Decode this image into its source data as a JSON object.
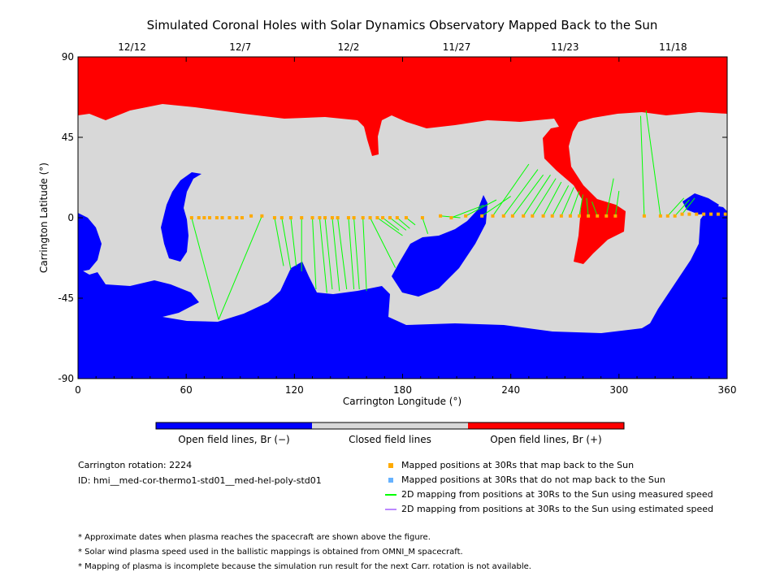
{
  "chart_data": {
    "type": "map",
    "title": "Simulated Coronal Holes with Solar Dynamics Observatory Mapped Back to the Sun",
    "xlabel": "Carrington Longitude (°)",
    "ylabel": "Carrington Latitude (°)",
    "xlim": [
      0,
      360
    ],
    "ylim": [
      -90,
      90
    ],
    "xticks": [
      0,
      60,
      120,
      180,
      240,
      300,
      360
    ],
    "yticks": [
      -90,
      -45,
      0,
      45,
      90
    ],
    "top_date_ticks": [
      {
        "label": "12/12",
        "lon": 30
      },
      {
        "label": "12/7",
        "lon": 90
      },
      {
        "label": "12/2",
        "lon": 150
      },
      {
        "label": "11/27",
        "lon": 210
      },
      {
        "label": "11/23",
        "lon": 270
      },
      {
        "label": "11/18",
        "lon": 330
      }
    ],
    "colorbar": [
      {
        "label": "Open field lines, Br (−)",
        "color": "#0000ff"
      },
      {
        "label": "Closed field lines",
        "color": "#d8d8d8"
      },
      {
        "label": "Open field lines, Br (+)",
        "color": "#ff0000"
      }
    ],
    "mapped_points": [
      {
        "lon": 63,
        "lat": 0,
        "src_lon": 78,
        "src_lat": -57
      },
      {
        "lon": 67,
        "lat": 0
      },
      {
        "lon": 70,
        "lat": 0
      },
      {
        "lon": 73,
        "lat": 0
      },
      {
        "lon": 77,
        "lat": 0
      },
      {
        "lon": 80,
        "lat": 0
      },
      {
        "lon": 84,
        "lat": 0
      },
      {
        "lon": 88,
        "lat": 0
      },
      {
        "lon": 91,
        "lat": 0
      },
      {
        "lon": 96,
        "lat": 1
      },
      {
        "lon": 102,
        "lat": 1,
        "src_lon": 78,
        "src_lat": -57
      },
      {
        "lon": 109,
        "lat": 0,
        "src_lon": 114,
        "src_lat": -27
      },
      {
        "lon": 113,
        "lat": 0,
        "src_lon": 118,
        "src_lat": -29
      },
      {
        "lon": 118,
        "lat": 0,
        "src_lon": 121,
        "src_lat": -27
      },
      {
        "lon": 124,
        "lat": 0,
        "src_lon": 124,
        "src_lat": -30
      },
      {
        "lon": 130,
        "lat": 0,
        "src_lon": 132,
        "src_lat": -40
      },
      {
        "lon": 134,
        "lat": 0,
        "src_lon": 138,
        "src_lat": -42
      },
      {
        "lon": 137,
        "lat": 0,
        "src_lon": 141,
        "src_lat": -40
      },
      {
        "lon": 141,
        "lat": 0,
        "src_lon": 145,
        "src_lat": -41
      },
      {
        "lon": 144,
        "lat": 0,
        "src_lon": 149,
        "src_lat": -40
      },
      {
        "lon": 150,
        "lat": 0,
        "src_lon": 153,
        "src_lat": -40
      },
      {
        "lon": 153,
        "lat": 0,
        "src_lon": 156,
        "src_lat": -40
      },
      {
        "lon": 158,
        "lat": 0,
        "src_lon": 160,
        "src_lat": -41
      },
      {
        "lon": 162,
        "lat": 0,
        "src_lon": 176,
        "src_lat": -28
      },
      {
        "lon": 166,
        "lat": 0,
        "src_lon": 180,
        "src_lat": -10
      },
      {
        "lon": 169,
        "lat": 0,
        "src_lon": 178,
        "src_lat": -7
      },
      {
        "lon": 173,
        "lat": 0,
        "src_lon": 182,
        "src_lat": -7
      },
      {
        "lon": 177,
        "lat": 0,
        "src_lon": 184,
        "src_lat": -6
      },
      {
        "lon": 182,
        "lat": 0,
        "src_lon": 187,
        "src_lat": -4
      },
      {
        "lon": 191,
        "lat": 0,
        "src_lon": 194,
        "src_lat": -9
      },
      {
        "lon": 201,
        "lat": 1,
        "src_lon": 212,
        "src_lat": 0
      },
      {
        "lon": 207,
        "lat": 0,
        "src_lon": 225,
        "src_lat": 7
      },
      {
        "lon": 215,
        "lat": 1,
        "src_lon": 232,
        "src_lat": 10
      },
      {
        "lon": 224,
        "lat": 1,
        "src_lon": 240,
        "src_lat": 12
      },
      {
        "lon": 230,
        "lat": 1,
        "src_lon": 250,
        "src_lat": 30
      },
      {
        "lon": 236,
        "lat": 1,
        "src_lon": 255,
        "src_lat": 27
      },
      {
        "lon": 241,
        "lat": 1,
        "src_lon": 258,
        "src_lat": 24
      },
      {
        "lon": 247,
        "lat": 1,
        "src_lon": 262,
        "src_lat": 24
      },
      {
        "lon": 252,
        "lat": 1,
        "src_lon": 265,
        "src_lat": 22
      },
      {
        "lon": 258,
        "lat": 1,
        "src_lon": 268,
        "src_lat": 20
      },
      {
        "lon": 263,
        "lat": 1,
        "src_lon": 272,
        "src_lat": 18
      },
      {
        "lon": 268,
        "lat": 1,
        "src_lon": 275,
        "src_lat": 17
      },
      {
        "lon": 273,
        "lat": 1,
        "src_lon": 278,
        "src_lat": 15
      },
      {
        "lon": 278,
        "lat": 1,
        "src_lon": 280,
        "src_lat": 13
      },
      {
        "lon": 283,
        "lat": 1,
        "src_lon": 282,
        "src_lat": 11
      },
      {
        "lon": 288,
        "lat": 1,
        "src_lon": 285,
        "src_lat": 9
      },
      {
        "lon": 293,
        "lat": 1,
        "src_lon": 297,
        "src_lat": 22
      },
      {
        "lon": 298,
        "lat": 1,
        "src_lon": 300,
        "src_lat": 15
      },
      {
        "lon": 314,
        "lat": 1,
        "src_lon": 312,
        "src_lat": 57
      },
      {
        "lon": 323,
        "lat": 1,
        "src_lon": 315,
        "src_lat": 60
      },
      {
        "lon": 327,
        "lat": 1,
        "src_lon": 336,
        "src_lat": 11
      },
      {
        "lon": 331,
        "lat": 1,
        "src_lon": 339,
        "src_lat": 10
      },
      {
        "lon": 335,
        "lat": 2,
        "src_lon": 342,
        "src_lat": 11
      },
      {
        "lon": 339,
        "lat": 2
      },
      {
        "lon": 343,
        "lat": 2
      },
      {
        "lon": 347,
        "lat": 2
      },
      {
        "lon": 351,
        "lat": 2
      },
      {
        "lon": 355,
        "lat": 2
      },
      {
        "lon": 359,
        "lat": 2
      }
    ],
    "legend": [
      {
        "label": "Mapped positions at 30Rs that map back to the Sun",
        "color": "#ffaa00",
        "marker": "square"
      },
      {
        "label": "Mapped positions at 30Rs that do not map back to the Sun",
        "color": "#66b2ff",
        "marker": "square"
      },
      {
        "label": "2D mapping from positions at 30Rs to the Sun using measured speed",
        "color": "#00ff00",
        "marker": "line"
      },
      {
        "label": "2D mapping from positions at 30Rs to the Sun using estimated speed",
        "color": "#bb88ff",
        "marker": "line"
      }
    ]
  },
  "info": {
    "rotation": "Carrington rotation: 2224",
    "id": "ID: hmi__med-cor-thermo1-std01__med-hel-poly-std01"
  },
  "notes": [
    "* Approximate dates when plasma reaches the spacecraft are shown above the figure.",
    "* Solar wind plasma speed used in the ballistic mappings is obtained from OMNI_M spacecraft.",
    "* Mapping of plasma is incomplete because the simulation run result for the next Carr. rotation is not available."
  ]
}
